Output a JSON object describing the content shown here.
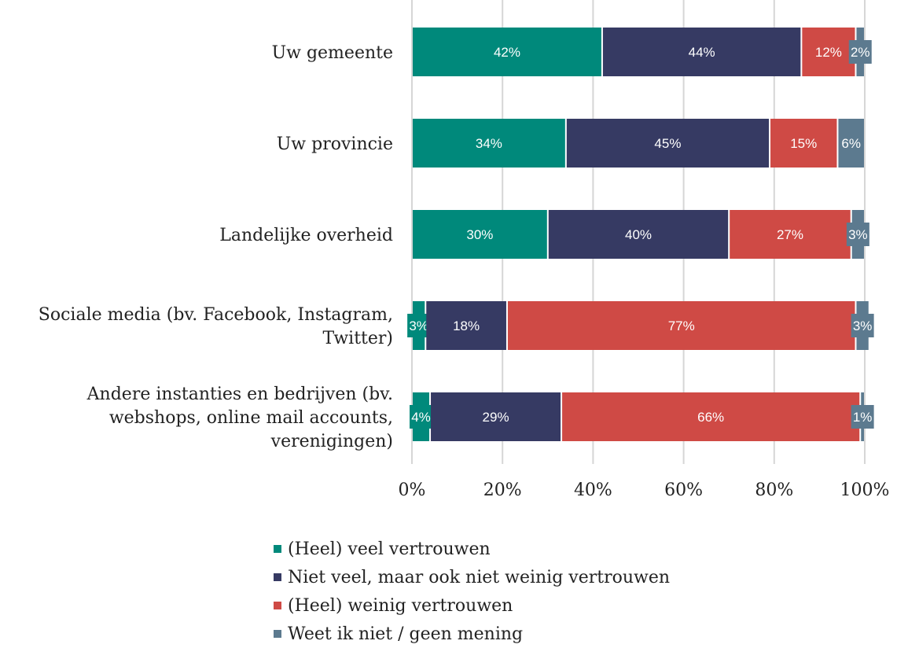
{
  "chart_data": {
    "type": "bar",
    "orientation": "horizontal",
    "stacked": true,
    "percent": true,
    "categories": [
      "Uw gemeente",
      "Uw provincie",
      "Landelijke overheid",
      "Sociale media (bv. Facebook, Instagram, Twitter)",
      "Andere instanties en bedrijven (bv. webshops, online mail accounts, verenigingen)"
    ],
    "category_lines": [
      [
        "Uw gemeente"
      ],
      [
        "Uw provincie"
      ],
      [
        "Landelijke overheid"
      ],
      [
        "Sociale media (bv. Facebook, Instagram,",
        "Twitter)"
      ],
      [
        "Andere instanties en bedrijven (bv.",
        "webshops, online mail accounts,",
        "verenigingen)"
      ]
    ],
    "series": [
      {
        "name": "(Heel) veel vertrouwen",
        "color": "#00897b",
        "values": [
          42,
          34,
          30,
          3,
          4
        ]
      },
      {
        "name": "Niet veel, maar ook niet weinig vertrouwen",
        "color": "#363a63",
        "values": [
          44,
          45,
          40,
          18,
          29
        ]
      },
      {
        "name": "(Heel) weinig vertrouwen",
        "color": "#cf4a45",
        "values": [
          12,
          15,
          27,
          77,
          66
        ]
      },
      {
        "name": "Weet ik niet / geen mening",
        "color": "#5c7a8f",
        "values": [
          2,
          6,
          3,
          3,
          1
        ]
      }
    ],
    "data_labels": [
      [
        "42%",
        "44%",
        "12%",
        "2%"
      ],
      [
        "34%",
        "45%",
        "15%",
        "6%"
      ],
      [
        "30%",
        "40%",
        "27%",
        "3%"
      ],
      [
        "3%",
        "18%",
        "77%",
        "3%"
      ],
      [
        "4%",
        "29%",
        "66%",
        "1%"
      ]
    ],
    "x_ticks": [
      "0%",
      "20%",
      "40%",
      "60%",
      "80%",
      "100%"
    ],
    "xlim": [
      0,
      100
    ],
    "grid": true,
    "legend_position": "bottom"
  }
}
